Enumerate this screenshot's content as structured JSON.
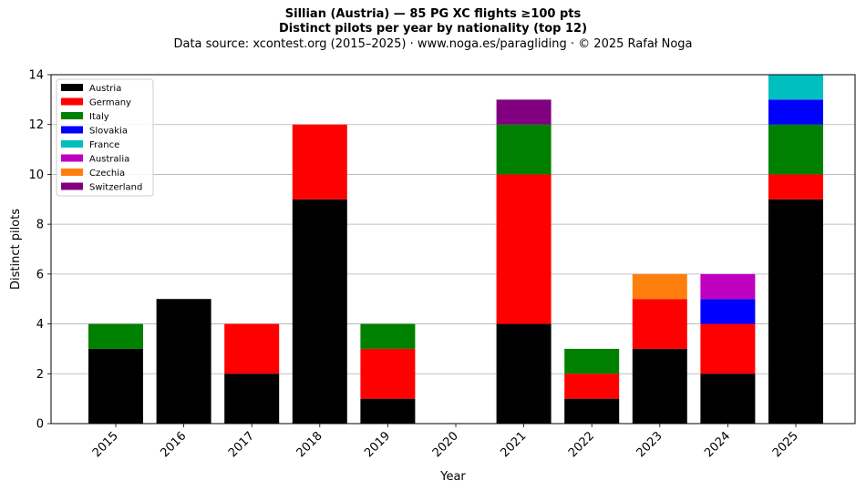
{
  "header": {
    "title": "Sillian (Austria)  —  85 PG XC flights ≥100 pts",
    "subtitle": "Distinct pilots per year by nationality (top 12)",
    "source": "Data source: xcontest.org (2015–2025)  ·  www.noga.es/paragliding  ·  © 2025 Rafał Noga"
  },
  "chart_data": {
    "type": "bar",
    "stacked": true,
    "title": "Sillian (Austria)  —  85 PG XC flights ≥100 pts",
    "subtitle": "Distinct pilots per year by nationality (top 12)",
    "xlabel": "Year",
    "ylabel": "Distinct pilots",
    "ylim": [
      0,
      14
    ],
    "yticks": [
      "0",
      "2",
      "4",
      "6",
      "8",
      "10",
      "12",
      "14"
    ],
    "grid": "y",
    "legend_position": "top-left",
    "categories": [
      "2015",
      "2016",
      "2017",
      "2018",
      "2019",
      "2020",
      "2021",
      "2022",
      "2023",
      "2024",
      "2025"
    ],
    "series": [
      {
        "name": "Austria",
        "color": "#000000",
        "values": [
          3,
          5,
          2,
          9,
          1,
          0,
          4,
          1,
          3,
          2,
          9
        ]
      },
      {
        "name": "Germany",
        "color": "#ff0000",
        "values": [
          0,
          0,
          2,
          3,
          2,
          0,
          6,
          1,
          2,
          2,
          1
        ]
      },
      {
        "name": "Italy",
        "color": "#008000",
        "values": [
          1,
          0,
          0,
          0,
          1,
          0,
          2,
          1,
          0,
          0,
          2
        ]
      },
      {
        "name": "Slovakia",
        "color": "#0000ff",
        "values": [
          0,
          0,
          0,
          0,
          0,
          0,
          0,
          0,
          0,
          1,
          1
        ]
      },
      {
        "name": "France",
        "color": "#00bfbf",
        "values": [
          0,
          0,
          0,
          0,
          0,
          0,
          0,
          0,
          0,
          0,
          1
        ]
      },
      {
        "name": "Australia",
        "color": "#bf00bf",
        "values": [
          0,
          0,
          0,
          0,
          0,
          0,
          0,
          0,
          0,
          1,
          0
        ]
      },
      {
        "name": "Czechia",
        "color": "#ff7f0e",
        "values": [
          0,
          0,
          0,
          0,
          0,
          0,
          0,
          0,
          1,
          0,
          0
        ]
      },
      {
        "name": "Switzerland",
        "color": "#800080",
        "values": [
          0,
          0,
          0,
          0,
          0,
          0,
          1,
          0,
          0,
          0,
          0
        ]
      }
    ]
  }
}
